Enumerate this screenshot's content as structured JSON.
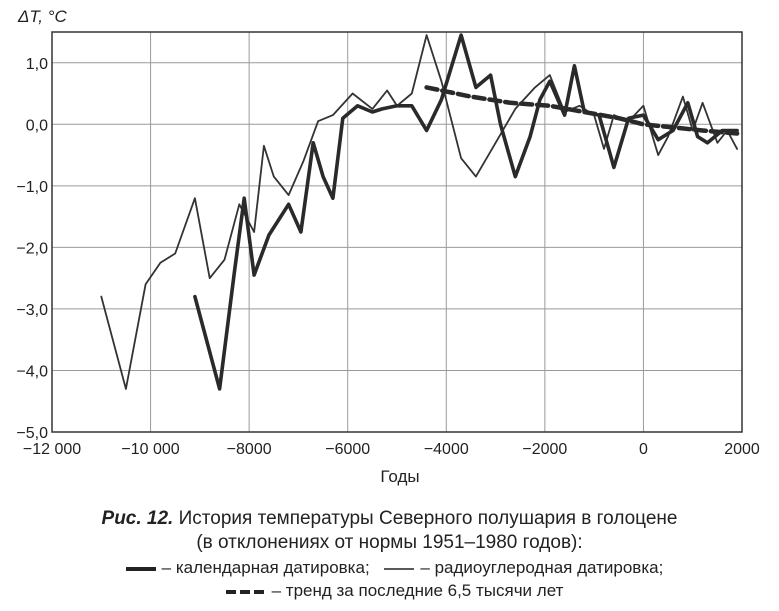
{
  "chart_data": {
    "type": "line",
    "title": "",
    "ylabel": "ΔT, °C",
    "xlabel": "Годы",
    "xlim": [
      -12000,
      2000
    ],
    "ylim": [
      -5,
      1.5
    ],
    "xticks": [
      -12000,
      -10000,
      -8000,
      -6000,
      -4000,
      -2000,
      0,
      2000
    ],
    "xtick_labels": [
      "−12 000",
      "−10 000",
      "−8000",
      "−6000",
      "−4000",
      "−2000",
      "0",
      "2000"
    ],
    "yticks": [
      1,
      0,
      -1,
      -2,
      -3,
      -4,
      -5
    ],
    "ytick_labels": [
      "1,0",
      "0,0",
      "−1,0",
      "−2,0",
      "−3,0",
      "−4,0",
      "−5,0"
    ],
    "grid": true,
    "series": [
      {
        "name": "радиоуглеродная датировка",
        "style": "thin",
        "color": "#333333",
        "points": [
          [
            -11000,
            -2.8
          ],
          [
            -10500,
            -4.3
          ],
          [
            -10100,
            -2.6
          ],
          [
            -9800,
            -2.25
          ],
          [
            -9500,
            -2.1
          ],
          [
            -9100,
            -1.2
          ],
          [
            -8800,
            -2.5
          ],
          [
            -8500,
            -2.2
          ],
          [
            -8200,
            -1.3
          ],
          [
            -7900,
            -1.75
          ],
          [
            -7700,
            -0.35
          ],
          [
            -7500,
            -0.85
          ],
          [
            -7200,
            -1.15
          ],
          [
            -6900,
            -0.6
          ],
          [
            -6600,
            0.05
          ],
          [
            -6300,
            0.15
          ],
          [
            -5900,
            0.5
          ],
          [
            -5500,
            0.25
          ],
          [
            -5200,
            0.55
          ],
          [
            -5000,
            0.3
          ],
          [
            -4700,
            0.5
          ],
          [
            -4400,
            1.45
          ],
          [
            -4100,
            0.7
          ],
          [
            -3700,
            -0.55
          ],
          [
            -3400,
            -0.85
          ],
          [
            -3000,
            -0.3
          ],
          [
            -2600,
            0.25
          ],
          [
            -2200,
            0.6
          ],
          [
            -1900,
            0.8
          ],
          [
            -1600,
            0.2
          ],
          [
            -1300,
            0.3
          ],
          [
            -1000,
            0.15
          ],
          [
            -800,
            -0.4
          ],
          [
            -600,
            0.15
          ],
          [
            -300,
            0.05
          ],
          [
            0,
            0.3
          ],
          [
            300,
            -0.5
          ],
          [
            500,
            -0.2
          ],
          [
            800,
            0.45
          ],
          [
            1000,
            -0.1
          ],
          [
            1200,
            0.35
          ],
          [
            1500,
            -0.3
          ],
          [
            1700,
            -0.1
          ],
          [
            1900,
            -0.4
          ]
        ]
      },
      {
        "name": "календарная датировка",
        "style": "thick",
        "color": "#2a2a2a",
        "points": [
          [
            -9100,
            -2.8
          ],
          [
            -8600,
            -4.3
          ],
          [
            -8300,
            -2.4
          ],
          [
            -8100,
            -1.2
          ],
          [
            -7900,
            -2.45
          ],
          [
            -7600,
            -1.8
          ],
          [
            -7200,
            -1.3
          ],
          [
            -6950,
            -1.75
          ],
          [
            -6700,
            -0.3
          ],
          [
            -6500,
            -0.85
          ],
          [
            -6300,
            -1.2
          ],
          [
            -6100,
            0.1
          ],
          [
            -5800,
            0.3
          ],
          [
            -5500,
            0.2
          ],
          [
            -5300,
            0.25
          ],
          [
            -5000,
            0.3
          ],
          [
            -4700,
            0.3
          ],
          [
            -4400,
            -0.1
          ],
          [
            -4100,
            0.4
          ],
          [
            -3700,
            1.45
          ],
          [
            -3400,
            0.6
          ],
          [
            -3100,
            0.8
          ],
          [
            -2900,
            0.0
          ],
          [
            -2600,
            -0.85
          ],
          [
            -2300,
            -0.2
          ],
          [
            -2100,
            0.4
          ],
          [
            -1900,
            0.7
          ],
          [
            -1600,
            0.15
          ],
          [
            -1400,
            0.95
          ],
          [
            -1200,
            0.2
          ],
          [
            -900,
            0.15
          ],
          [
            -600,
            -0.7
          ],
          [
            -300,
            0.1
          ],
          [
            0,
            0.15
          ],
          [
            300,
            -0.25
          ],
          [
            600,
            -0.1
          ],
          [
            900,
            0.35
          ],
          [
            1100,
            -0.2
          ],
          [
            1300,
            -0.3
          ],
          [
            1600,
            -0.1
          ],
          [
            1900,
            -0.1
          ]
        ]
      },
      {
        "name": "тренд за последние 6,5 тысячи лет",
        "style": "dashed",
        "color": "#2a2a2a",
        "points": [
          [
            -4400,
            0.6
          ],
          [
            -3500,
            0.45
          ],
          [
            -2700,
            0.35
          ],
          [
            -1900,
            0.3
          ],
          [
            -1200,
            0.2
          ],
          [
            -500,
            0.1
          ],
          [
            0,
            0.0
          ],
          [
            600,
            -0.05
          ],
          [
            1200,
            -0.1
          ],
          [
            1900,
            -0.15
          ]
        ]
      }
    ]
  },
  "caption": {
    "fig_label": "Рис. 12.",
    "line1": " История температуры Северного полушария в голоцене",
    "line2": "(в отклонениях от нормы 1951–1980 годов):",
    "legend_calendar": "– календарная датировка;",
    "legend_radiocarbon": "– радиоуглеродная датировка;",
    "legend_trend": "– тренд за последние 6,5 тысячи лет"
  }
}
